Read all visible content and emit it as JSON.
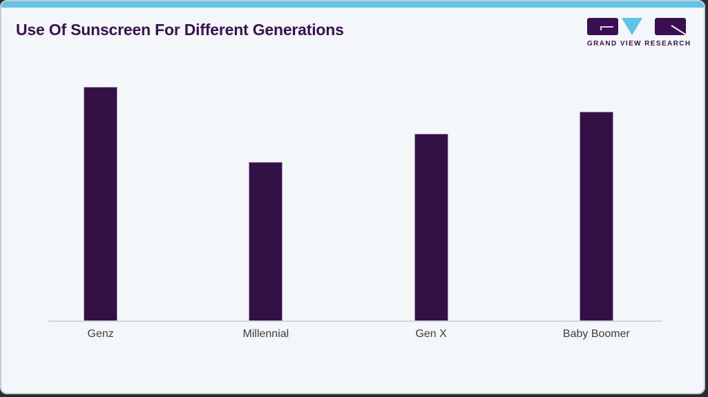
{
  "header": {
    "title": "Use Of Sunscreen For Different Generations",
    "logo": {
      "name": "Grand View Research",
      "text": "GRAND VIEW RESEARCH"
    }
  },
  "colors": {
    "accent_blue": "#62c4e9",
    "logo_triangle_blue": "#5bc4ea",
    "bar_purple": "#331146",
    "title_purple": "#3a1053",
    "card_background": "#f3f7fa",
    "axis_gray": "#d3d6d8",
    "label_gray": "#3d3d3d"
  },
  "chart_data": {
    "type": "bar",
    "categories": [
      "Genz",
      "Millennial",
      "Gen X",
      "Baby Boomer"
    ],
    "values": [
      75,
      51,
      60,
      67
    ],
    "title": "Use Of Sunscreen For Different Generations",
    "xlabel": "",
    "ylabel": "",
    "ylim": [
      0,
      82
    ],
    "gridlines": false,
    "value_labels": false,
    "legend": "none",
    "bar_color": "#331146"
  }
}
